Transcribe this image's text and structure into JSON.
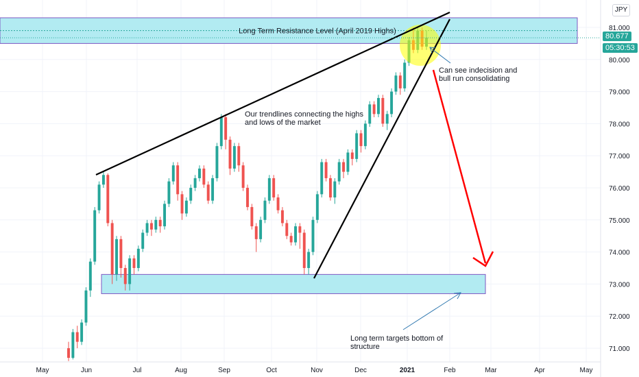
{
  "chart_data": {
    "type": "candlestick",
    "title": "",
    "currency": "JPY",
    "y_range": [
      70.65,
      81.45
    ],
    "y_ticks": [
      "81.000",
      "80.000",
      "79.000",
      "78.000",
      "77.000",
      "76.000",
      "75.000",
      "74.000",
      "73.000",
      "72.000",
      "71.000"
    ],
    "x_ticks": [
      "May",
      "Jun",
      "Jul",
      "Aug",
      "Sep",
      "Oct",
      "Nov",
      "Dec",
      "2021",
      "Feb",
      "Mar",
      "Apr",
      "May"
    ],
    "last_price": "80.677",
    "countdown": "05:30:53",
    "colors": {
      "up": "#26a69a",
      "down": "#ef5350",
      "zone": "#b2ebf2",
      "zone_border": "#7e57c2",
      "arrow": "#ff0000",
      "highlight": "#ffff00",
      "trendline": "#000000"
    },
    "candles": [
      [
        71.0,
        70.7,
        71.2,
        70.6
      ],
      [
        70.7,
        71.5,
        71.6,
        70.65
      ],
      [
        71.5,
        71.2,
        71.7,
        71.0
      ],
      [
        71.2,
        71.8,
        71.9,
        71.1
      ],
      [
        71.8,
        72.8,
        72.9,
        71.7
      ],
      [
        72.8,
        73.7,
        73.8,
        72.6
      ],
      [
        73.7,
        75.3,
        75.4,
        73.6
      ],
      [
        75.3,
        76.1,
        76.2,
        75.2
      ],
      [
        76.1,
        76.4,
        76.5,
        76.0
      ],
      [
        76.4,
        74.9,
        76.45,
        74.8
      ],
      [
        74.9,
        73.3,
        75.0,
        73.0
      ],
      [
        73.3,
        74.4,
        74.5,
        73.1
      ],
      [
        74.4,
        73.5,
        74.5,
        73.2
      ],
      [
        73.5,
        73.0,
        73.6,
        72.8
      ],
      [
        73.0,
        73.8,
        73.9,
        72.8
      ],
      [
        73.8,
        73.5,
        73.9,
        73.3
      ],
      [
        73.5,
        74.1,
        74.2,
        73.4
      ],
      [
        74.1,
        74.6,
        74.7,
        74.0
      ],
      [
        74.6,
        74.9,
        75.0,
        74.5
      ],
      [
        74.9,
        74.7,
        75.0,
        74.5
      ],
      [
        74.7,
        75.0,
        75.1,
        74.6
      ],
      [
        75.0,
        74.8,
        75.1,
        74.6
      ],
      [
        74.8,
        75.5,
        75.6,
        74.7
      ],
      [
        75.5,
        76.2,
        76.3,
        75.4
      ],
      [
        76.2,
        76.7,
        76.8,
        76.1
      ],
      [
        76.7,
        75.8,
        76.8,
        75.6
      ],
      [
        75.8,
        75.2,
        75.9,
        75.0
      ],
      [
        75.2,
        75.6,
        75.7,
        75.1
      ],
      [
        75.6,
        76.0,
        76.1,
        75.5
      ],
      [
        76.0,
        76.3,
        76.4,
        75.9
      ],
      [
        76.3,
        76.6,
        76.7,
        76.2
      ],
      [
        76.6,
        76.1,
        76.7,
        76.0
      ],
      [
        76.1,
        75.6,
        76.2,
        75.5
      ],
      [
        75.6,
        76.3,
        76.4,
        75.5
      ],
      [
        76.3,
        77.3,
        77.4,
        76.2
      ],
      [
        77.3,
        78.2,
        78.3,
        77.2
      ],
      [
        78.2,
        77.5,
        78.3,
        77.2
      ],
      [
        77.5,
        76.6,
        77.6,
        76.4
      ],
      [
        76.6,
        77.3,
        77.4,
        76.5
      ],
      [
        77.3,
        76.7,
        77.4,
        76.5
      ],
      [
        76.7,
        76.0,
        76.8,
        75.9
      ],
      [
        76.0,
        75.4,
        76.1,
        75.3
      ],
      [
        75.4,
        74.8,
        75.5,
        74.7
      ],
      [
        74.8,
        74.4,
        74.9,
        74.0
      ],
      [
        74.4,
        75.0,
        75.1,
        74.3
      ],
      [
        75.0,
        75.6,
        75.7,
        74.9
      ],
      [
        75.6,
        76.3,
        76.4,
        75.5
      ],
      [
        76.3,
        75.7,
        76.4,
        75.6
      ],
      [
        75.7,
        75.3,
        75.8,
        75.2
      ],
      [
        75.3,
        74.9,
        75.4,
        74.8
      ],
      [
        74.9,
        74.5,
        75.0,
        74.4
      ],
      [
        74.5,
        74.3,
        74.6,
        74.2
      ],
      [
        74.3,
        74.8,
        74.9,
        74.2
      ],
      [
        74.8,
        74.6,
        74.9,
        74.1
      ],
      [
        74.6,
        73.5,
        74.7,
        73.3
      ],
      [
        73.5,
        74.0,
        74.1,
        73.3
      ],
      [
        74.0,
        75.0,
        75.1,
        73.9
      ],
      [
        75.0,
        75.8,
        75.9,
        74.9
      ],
      [
        75.8,
        76.8,
        76.9,
        75.7
      ],
      [
        76.8,
        76.3,
        76.9,
        76.2
      ],
      [
        76.3,
        75.7,
        76.4,
        75.6
      ],
      [
        75.7,
        76.2,
        76.3,
        75.5
      ],
      [
        76.2,
        76.8,
        76.9,
        76.1
      ],
      [
        76.8,
        76.5,
        76.9,
        76.3
      ],
      [
        76.5,
        77.1,
        77.2,
        76.4
      ],
      [
        77.1,
        76.9,
        77.2,
        76.7
      ],
      [
        76.9,
        77.7,
        77.8,
        76.8
      ],
      [
        77.7,
        77.3,
        77.8,
        77.1
      ],
      [
        77.3,
        78.0,
        78.1,
        77.2
      ],
      [
        78.0,
        78.6,
        78.7,
        77.9
      ],
      [
        78.6,
        78.3,
        78.7,
        78.2
      ],
      [
        78.3,
        78.8,
        78.9,
        78.2
      ],
      [
        78.8,
        78.0,
        78.9,
        77.9
      ],
      [
        78.0,
        78.3,
        78.4,
        77.8
      ],
      [
        78.3,
        79.0,
        79.1,
        78.2
      ],
      [
        79.0,
        79.5,
        79.6,
        78.9
      ],
      [
        79.5,
        79.1,
        79.6,
        78.9
      ],
      [
        79.1,
        79.9,
        80.0,
        79.0
      ],
      [
        79.9,
        80.6,
        80.7,
        79.8
      ],
      [
        80.6,
        80.3,
        81.0,
        80.2
      ],
      [
        80.3,
        80.9,
        81.0,
        80.2
      ],
      [
        80.9,
        80.4,
        81.0,
        80.3
      ],
      [
        80.4,
        80.677,
        80.9,
        80.3
      ]
    ],
    "zones": [
      {
        "label": "Long Term Resistance Level (April 2019 Highs)",
        "from": 80.5,
        "to": 81.3
      },
      {
        "label": "",
        "from": 72.7,
        "to": 73.3
      }
    ],
    "annotations": [
      "Our trendlines connecting the highs",
      "and lows of the market",
      "Can see indecision and",
      "bull run consolidating",
      "Long term targets bottom of",
      "structure"
    ]
  }
}
